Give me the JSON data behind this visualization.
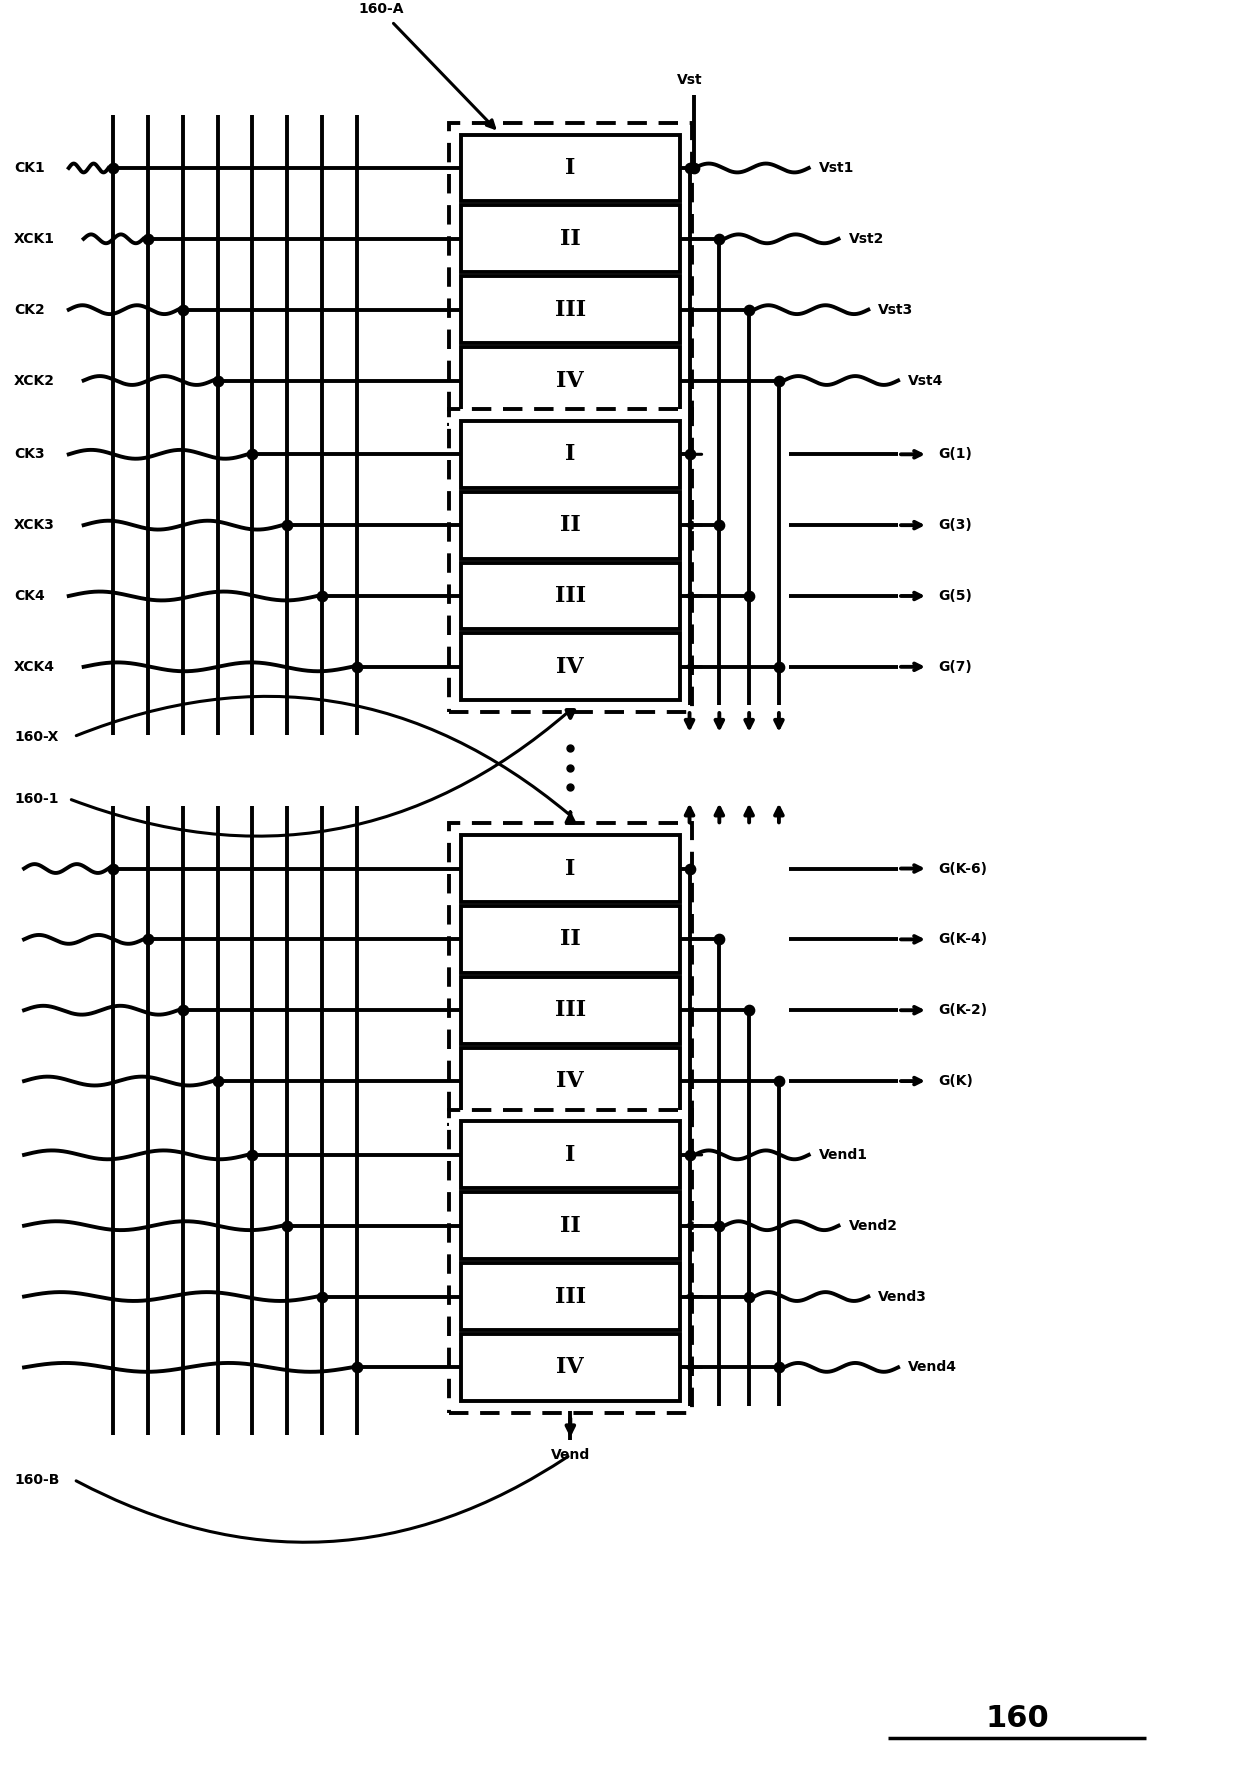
{
  "title": "160",
  "bg_color": "#ffffff",
  "lw": 2.2,
  "lw_thick": 2.8,
  "dot_size": 55,
  "fig_width": 12.4,
  "fig_height": 17.72,
  "left_labels": [
    "CK1",
    "XCK1",
    "CK2",
    "XCK2",
    "CK3",
    "XCK3",
    "CK4",
    "XCK4"
  ],
  "right_labels_top": [
    "Vst1",
    "Vst2",
    "Vst3",
    "Vst4"
  ],
  "right_labels_mid": [
    "G(1)",
    "G(3)",
    "G(5)",
    "G(7)"
  ],
  "right_labels_bot1": [
    "G(K-6)",
    "G(K-4)",
    "G(K-2)",
    "G(K)"
  ],
  "right_labels_bot2": [
    "Vend1",
    "Vend2",
    "Vend3",
    "Vend4"
  ],
  "roman_numerals": [
    "I",
    "II",
    "III",
    "IV"
  ]
}
